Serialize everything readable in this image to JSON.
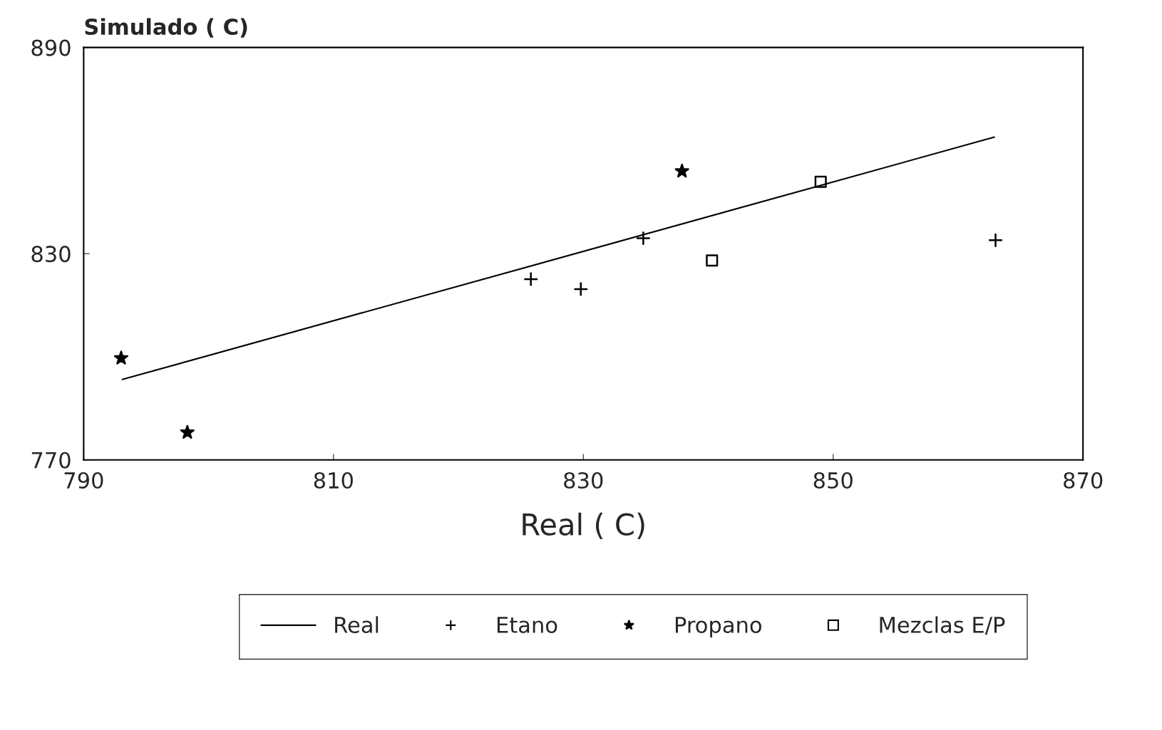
{
  "chart_data": {
    "type": "scatter",
    "xlabel": "Real ( C)",
    "ylabel": "Simulado ( C)",
    "xlim": [
      790,
      870
    ],
    "xticks": [
      790,
      810,
      830,
      850,
      870
    ],
    "ylim": [
      770,
      890
    ],
    "yticks": [
      770,
      830,
      890
    ],
    "grid": false,
    "legend": "bottom",
    "series": [
      {
        "name": "Real",
        "type": "line",
        "color": "#000000",
        "marker": "none",
        "line_style": "solid",
        "x": [
          793.1,
          862.9
        ],
        "values": [
          793.4,
          863.9
        ]
      },
      {
        "name": "Etano",
        "color": "#000000",
        "marker": "cross",
        "x": [
          825.8,
          829.8,
          834.8,
          863.0
        ],
        "values": [
          822.6,
          819.7,
          834.5,
          833.9
        ]
      },
      {
        "name": "Propano",
        "color": "#000000",
        "marker": "star",
        "x": [
          793.0,
          798.3,
          837.9
        ],
        "values": [
          799.6,
          778.0,
          854.0
        ]
      },
      {
        "name": "Mezclas E/P",
        "color": "#000000",
        "marker": "square",
        "x": [
          849.0,
          840.3
        ],
        "values": [
          850.9,
          828.0
        ]
      }
    ]
  }
}
